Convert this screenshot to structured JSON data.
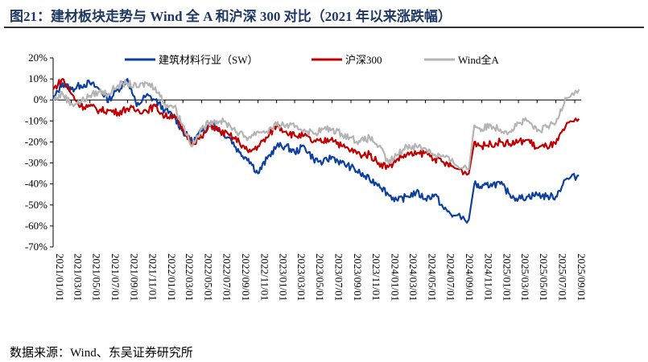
{
  "title": "图21：建材板块走势与 Wind 全 A 和沪深 300 对比（2021 年以来涨跌幅）",
  "source": "数据来源：Wind、东吴证券研究所",
  "chart_data": {
    "type": "line",
    "title": "",
    "xlabel": "",
    "ylabel": "",
    "ylim": [
      -70,
      20
    ],
    "ytick_step": 10,
    "yticks": [
      "20%",
      "10%",
      "0%",
      "-10%",
      "-20%",
      "-30%",
      "-40%",
      "-50%",
      "-60%",
      "-70%"
    ],
    "xticks": [
      "2021/01/01",
      "2021/03/01",
      "2021/05/01",
      "2021/07/01",
      "2021/09/01",
      "2021/11/01",
      "2022/01/01",
      "2022/03/01",
      "2022/05/01",
      "2022/07/01",
      "2022/09/01",
      "2022/11/01",
      "2023/01/01",
      "2023/03/01",
      "2023/05/01",
      "2023/07/01",
      "2023/09/01",
      "2023/11/01",
      "2024/01/01",
      "2024/03/01",
      "2024/05/01",
      "2024/07/01",
      "2024/09/01",
      "2024/11/01",
      "2025/01/01",
      "2025/03/01",
      "2025/05/01",
      "2025/07/01",
      "2025/09/01"
    ],
    "legend_position": "top",
    "grid": false,
    "x": [
      "2021/01/01",
      "2021/02/01",
      "2021/03/01",
      "2021/04/01",
      "2021/05/01",
      "2021/06/01",
      "2021/07/01",
      "2021/08/01",
      "2021/09/01",
      "2021/10/01",
      "2021/11/01",
      "2021/12/01",
      "2022/01/01",
      "2022/02/01",
      "2022/03/01",
      "2022/04/01",
      "2022/05/01",
      "2022/06/01",
      "2022/07/01",
      "2022/08/01",
      "2022/09/01",
      "2022/10/01",
      "2022/11/01",
      "2022/12/01",
      "2023/01/01",
      "2023/02/01",
      "2023/03/01",
      "2023/04/01",
      "2023/05/01",
      "2023/06/01",
      "2023/07/01",
      "2023/08/01",
      "2023/09/01",
      "2023/10/01",
      "2023/11/01",
      "2023/12/01",
      "2024/01/01",
      "2024/02/01",
      "2024/03/01",
      "2024/04/01",
      "2024/05/01",
      "2024/06/01",
      "2024/07/01",
      "2024/08/01",
      "2024/09/20",
      "2024/10/08",
      "2024/11/01",
      "2024/12/01",
      "2025/01/01",
      "2025/02/01",
      "2025/03/01",
      "2025/04/01",
      "2025/05/01",
      "2025/06/01",
      "2025/07/01",
      "2025/08/01",
      "2025/09/15"
    ],
    "series": [
      {
        "name": "建筑材料行业（SW）",
        "color": "#0d3f9e",
        "values": [
          0,
          8,
          5,
          7,
          8,
          5,
          0,
          5,
          10,
          -3,
          2,
          0,
          -5,
          -8,
          -15,
          -20,
          -15,
          -10,
          -15,
          -18,
          -25,
          -28,
          -35,
          -28,
          -22,
          -22,
          -25,
          -22,
          -28,
          -30,
          -27,
          -30,
          -32,
          -35,
          -38,
          -40,
          -45,
          -48,
          -46,
          -44,
          -47,
          -45,
          -52,
          -55,
          -57,
          -40,
          -42,
          -40,
          -40,
          -45,
          -47,
          -46,
          -45,
          -46,
          -46,
          -38,
          -36
        ]
      },
      {
        "name": "沪深300",
        "color": "#c00000",
        "values": [
          5,
          10,
          3,
          -3,
          -3,
          -5,
          -5,
          -6,
          -4,
          -5,
          -5,
          -3,
          -8,
          -7,
          -15,
          -20,
          -18,
          -12,
          -15,
          -17,
          -20,
          -25,
          -22,
          -18,
          -12,
          -15,
          -17,
          -17,
          -20,
          -20,
          -18,
          -22,
          -24,
          -26,
          -26,
          -30,
          -32,
          -28,
          -26,
          -26,
          -25,
          -28,
          -30,
          -32,
          -35,
          -20,
          -22,
          -21,
          -20,
          -21,
          -20,
          -19,
          -23,
          -22,
          -21,
          -13,
          -9
        ]
      },
      {
        "name": "Wind全A",
        "color": "#b4b4b4",
        "values": [
          0,
          3,
          -2,
          -1,
          2,
          4,
          3,
          7,
          8,
          6,
          8,
          6,
          -2,
          -3,
          -12,
          -22,
          -14,
          -10,
          -10,
          -12,
          -16,
          -18,
          -15,
          -15,
          -12,
          -12,
          -13,
          -14,
          -16,
          -14,
          -14,
          -16,
          -18,
          -20,
          -18,
          -22,
          -30,
          -26,
          -22,
          -22,
          -23,
          -26,
          -27,
          -30,
          -33,
          -12,
          -14,
          -12,
          -14,
          -15,
          -11,
          -10,
          -15,
          -13,
          -11,
          1,
          5
        ]
      }
    ]
  }
}
